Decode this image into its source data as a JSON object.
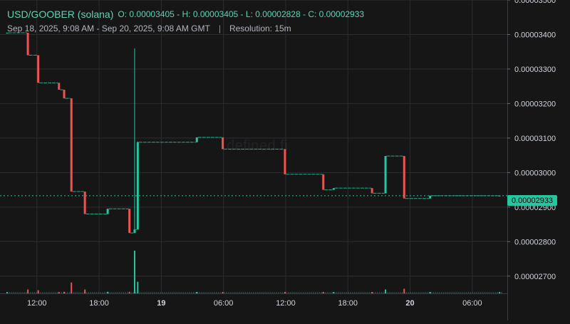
{
  "header": {
    "pair": "USD/GOOBER (solana)",
    "ohlc": {
      "o_label": "O:",
      "o": "0.00003405",
      "h_label": "H:",
      "h": "0.00003405",
      "l_label": "L:",
      "l": "0.00002828",
      "c_label": "C:",
      "c": "0.00002933",
      "sep": " - "
    },
    "range": "Sep 18, 2025, 9:08 AM - Sep 20, 2025, 9:08 AM GMT",
    "separator": "|",
    "resolution": "Resolution: 15m"
  },
  "watermark": "defined.fi",
  "colors": {
    "background": "#161616",
    "grid": "#2b2d31",
    "up": "#26c6a0",
    "down": "#ef5350",
    "axis_text": "#d1d4dc"
  },
  "chart_data": {
    "type": "candlestick",
    "ylim": [
      2.65e-05,
      3.5e-05
    ],
    "y_ticks": [
      "0.00003500",
      "0.00003400",
      "0.00003300",
      "0.00003200",
      "0.00003100",
      "0.00003000",
      "0.00002900",
      "0.00002800",
      "0.00002700"
    ],
    "y_tick_values": [
      3.5e-05,
      3.4e-05,
      3.3e-05,
      3.2e-05,
      3.1e-05,
      3e-05,
      2.9e-05,
      2.8e-05,
      2.7e-05
    ],
    "x_ticks": [
      "12:00",
      "18:00",
      "19",
      "06:00",
      "12:00",
      "18:00",
      "20",
      "06:00"
    ],
    "x_tick_hours": [
      2.87,
      8.87,
      14.87,
      20.87,
      26.87,
      32.87,
      38.87,
      44.87
    ],
    "x_tick_bold": [
      false,
      false,
      true,
      false,
      false,
      false,
      true,
      false
    ],
    "last_price": "0.00002933",
    "last_price_value": 2.933e-05,
    "candles": [
      {
        "t": 0.0,
        "o": 3.405e-05,
        "h": 3.405e-05,
        "l": 3.405e-05,
        "c": 3.405e-05,
        "v": 0.5
      },
      {
        "t": 2.0,
        "o": 3.405e-05,
        "h": 3.405e-05,
        "l": 3.34e-05,
        "c": 3.34e-05,
        "v": 5
      },
      {
        "t": 3.0,
        "o": 3.34e-05,
        "h": 3.34e-05,
        "l": 3.26e-05,
        "c": 3.26e-05,
        "v": 4
      },
      {
        "t": 5.0,
        "o": 3.26e-05,
        "h": 3.26e-05,
        "l": 3.24e-05,
        "c": 3.24e-05,
        "v": 1
      },
      {
        "t": 5.5,
        "o": 3.24e-05,
        "h": 3.24e-05,
        "l": 3.215e-05,
        "c": 3.215e-05,
        "v": 2
      },
      {
        "t": 6.2,
        "o": 3.215e-05,
        "h": 3.215e-05,
        "l": 2.945e-05,
        "c": 2.945e-05,
        "v": 14
      },
      {
        "t": 7.5,
        "o": 2.945e-05,
        "h": 2.945e-05,
        "l": 2.88e-05,
        "c": 2.88e-05,
        "v": 5
      },
      {
        "t": 9.7,
        "o": 2.88e-05,
        "h": 2.895e-05,
        "l": 2.88e-05,
        "c": 2.895e-05,
        "v": 2
      },
      {
        "t": 11.8,
        "o": 2.895e-05,
        "h": 2.895e-05,
        "l": 2.825e-05,
        "c": 2.825e-05,
        "v": 2
      },
      {
        "t": 12.3,
        "o": 2.825e-05,
        "h": 3.36e-05,
        "l": 2.825e-05,
        "c": 2.835e-05,
        "v": 55
      },
      {
        "t": 12.6,
        "o": 2.835e-05,
        "h": 3.09e-05,
        "l": 2.835e-05,
        "c": 3.088e-05,
        "v": 15
      },
      {
        "t": 18.3,
        "o": 3.088e-05,
        "h": 3.102e-05,
        "l": 3.088e-05,
        "c": 3.102e-05,
        "v": 1
      },
      {
        "t": 20.8,
        "o": 3.102e-05,
        "h": 3.102e-05,
        "l": 3.068e-05,
        "c": 3.068e-05,
        "v": 1
      },
      {
        "t": 26.8,
        "o": 3.068e-05,
        "h": 3.068e-05,
        "l": 2.995e-05,
        "c": 2.995e-05,
        "v": 1
      },
      {
        "t": 30.5,
        "o": 2.995e-05,
        "h": 2.995e-05,
        "l": 2.95e-05,
        "c": 2.95e-05,
        "v": 1
      },
      {
        "t": 31.5,
        "o": 2.95e-05,
        "h": 2.955e-05,
        "l": 2.95e-05,
        "c": 2.955e-05,
        "v": 1
      },
      {
        "t": 35.2,
        "o": 2.955e-05,
        "h": 2.955e-05,
        "l": 2.94e-05,
        "c": 2.94e-05,
        "v": 1
      },
      {
        "t": 36.5,
        "o": 2.94e-05,
        "h": 3.048e-05,
        "l": 2.94e-05,
        "c": 3.048e-05,
        "v": 5
      },
      {
        "t": 38.3,
        "o": 3.048e-05,
        "h": 3.048e-05,
        "l": 2.925e-05,
        "c": 2.925e-05,
        "v": 6
      },
      {
        "t": 40.8,
        "o": 2.925e-05,
        "h": 2.933e-05,
        "l": 2.925e-05,
        "c": 2.933e-05,
        "v": 1
      },
      {
        "t": 47.5,
        "o": 2.933e-05,
        "h": 2.933e-05,
        "l": 2.933e-05,
        "c": 2.933e-05,
        "v": 0.5
      }
    ]
  }
}
